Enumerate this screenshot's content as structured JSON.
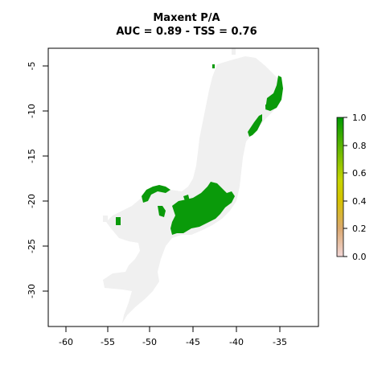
{
  "title": "Maxent P/A",
  "subtitle": "AUC = 0.89 - TSS = 0.76",
  "x_ticks": [
    "-60",
    "-55",
    "-50",
    "-45",
    "-40",
    "-35"
  ],
  "y_ticks": [
    "-5",
    "-10",
    "-15",
    "-20",
    "-25",
    "-30"
  ],
  "colorbar": {
    "ticks": [
      "1.0",
      "0.8",
      "0.6",
      "0.4",
      "0.2",
      "0.0"
    ],
    "colors": [
      "#f2c4c4",
      "#d9a84a",
      "#d7d400",
      "#a7c400",
      "#55b000",
      "#009a00"
    ]
  },
  "colors": {
    "background_region": "#f0f0f0",
    "presence": "#0a9a0a"
  }
}
